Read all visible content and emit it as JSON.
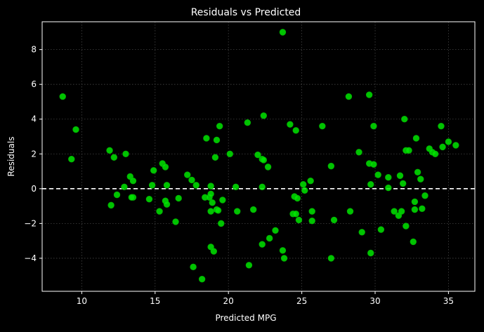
{
  "colors": {
    "background": "#000000",
    "foreground": "#ffffff",
    "marker": "#00e600",
    "marker_edge": "#00b300",
    "grid": "#444444",
    "zero_line": "#ffffff"
  },
  "chart_data": {
    "type": "scatter",
    "title": "Residuals vs Predicted",
    "xlabel": "Predicted MPG",
    "ylabel": "Residuals",
    "xlim": [
      7.3,
      36.8
    ],
    "ylim": [
      -5.9,
      9.6
    ],
    "xticks": [
      10,
      15,
      20,
      25,
      30,
      35
    ],
    "yticks": [
      -4,
      -2,
      0,
      2,
      4,
      6,
      8
    ],
    "grid": true,
    "grid_style": "dotted",
    "reference_line": {
      "y": 0,
      "style": "dashed"
    },
    "points": [
      [
        8.7,
        5.3
      ],
      [
        9.3,
        1.7
      ],
      [
        9.6,
        3.4
      ],
      [
        11.9,
        2.2
      ],
      [
        12.0,
        -0.95
      ],
      [
        12.2,
        1.8
      ],
      [
        12.4,
        -0.35
      ],
      [
        12.9,
        0.1
      ],
      [
        13.0,
        2.0
      ],
      [
        13.3,
        0.7
      ],
      [
        13.5,
        -0.5
      ],
      [
        13.5,
        0.45
      ],
      [
        13.4,
        -0.5
      ],
      [
        14.6,
        -0.6
      ],
      [
        14.8,
        0.2
      ],
      [
        14.9,
        1.05
      ],
      [
        15.3,
        -1.3
      ],
      [
        15.5,
        1.45
      ],
      [
        15.7,
        1.25
      ],
      [
        15.7,
        -0.7
      ],
      [
        15.8,
        0.2
      ],
      [
        15.8,
        -0.9
      ],
      [
        16.4,
        -1.9
      ],
      [
        16.6,
        -0.55
      ],
      [
        17.2,
        0.8
      ],
      [
        17.5,
        0.5
      ],
      [
        17.6,
        -4.5
      ],
      [
        17.8,
        0.2
      ],
      [
        18.2,
        -5.2
      ],
      [
        18.4,
        -0.5
      ],
      [
        18.5,
        2.9
      ],
      [
        18.7,
        -0.5
      ],
      [
        18.8,
        -0.3
      ],
      [
        18.8,
        0.15
      ],
      [
        18.8,
        -1.3
      ],
      [
        18.8,
        -3.35
      ],
      [
        18.9,
        -0.8
      ],
      [
        19.0,
        -3.6
      ],
      [
        19.1,
        1.8
      ],
      [
        19.2,
        2.8
      ],
      [
        19.2,
        -1.2
      ],
      [
        19.3,
        -1.25
      ],
      [
        19.4,
        3.6
      ],
      [
        19.5,
        -2.0
      ],
      [
        19.6,
        -0.65
      ],
      [
        20.1,
        2.0
      ],
      [
        20.5,
        0.1
      ],
      [
        20.6,
        -1.3
      ],
      [
        21.3,
        3.8
      ],
      [
        21.4,
        -4.4
      ],
      [
        21.7,
        -1.2
      ],
      [
        22.0,
        1.95
      ],
      [
        22.3,
        -3.2
      ],
      [
        22.3,
        0.1
      ],
      [
        22.3,
        1.7
      ],
      [
        22.4,
        1.65
      ],
      [
        22.4,
        4.2
      ],
      [
        22.7,
        1.25
      ],
      [
        22.8,
        -2.85
      ],
      [
        23.2,
        -2.4
      ],
      [
        23.7,
        -3.55
      ],
      [
        23.7,
        9.0
      ],
      [
        23.8,
        -4.0
      ],
      [
        24.2,
        3.7
      ],
      [
        24.4,
        -1.45
      ],
      [
        24.5,
        -0.45
      ],
      [
        24.6,
        -1.45
      ],
      [
        24.6,
        3.35
      ],
      [
        24.7,
        -0.55
      ],
      [
        24.8,
        -1.8
      ],
      [
        25.1,
        0.25
      ],
      [
        25.2,
        -0.1
      ],
      [
        25.6,
        0.45
      ],
      [
        25.7,
        -1.3
      ],
      [
        25.7,
        -1.85
      ],
      [
        26.4,
        3.6
      ],
      [
        27.0,
        -4.0
      ],
      [
        27.0,
        1.3
      ],
      [
        27.2,
        -1.8
      ],
      [
        28.2,
        5.3
      ],
      [
        28.3,
        -1.3
      ],
      [
        28.9,
        2.1
      ],
      [
        29.1,
        -2.5
      ],
      [
        29.6,
        1.45
      ],
      [
        29.6,
        5.4
      ],
      [
        29.7,
        0.25
      ],
      [
        29.7,
        -3.7
      ],
      [
        29.9,
        3.6
      ],
      [
        29.9,
        1.4
      ],
      [
        30.2,
        0.8
      ],
      [
        30.4,
        -2.35
      ],
      [
        30.9,
        0.65
      ],
      [
        30.9,
        0.05
      ],
      [
        31.3,
        -1.3
      ],
      [
        31.6,
        -1.55
      ],
      [
        31.7,
        0.75
      ],
      [
        31.8,
        -1.3
      ],
      [
        31.9,
        0.3
      ],
      [
        32.0,
        4.0
      ],
      [
        32.1,
        2.2
      ],
      [
        32.1,
        -2.15
      ],
      [
        32.3,
        2.2
      ],
      [
        32.6,
        -3.05
      ],
      [
        32.7,
        -1.2
      ],
      [
        32.7,
        -0.75
      ],
      [
        32.8,
        2.9
      ],
      [
        32.9,
        0.95
      ],
      [
        33.1,
        0.55
      ],
      [
        33.2,
        -1.15
      ],
      [
        33.4,
        -0.4
      ],
      [
        33.7,
        2.3
      ],
      [
        33.9,
        2.1
      ],
      [
        34.1,
        2.0
      ],
      [
        34.5,
        3.6
      ],
      [
        34.6,
        2.4
      ],
      [
        35.0,
        2.7
      ],
      [
        35.5,
        2.5
      ]
    ]
  }
}
